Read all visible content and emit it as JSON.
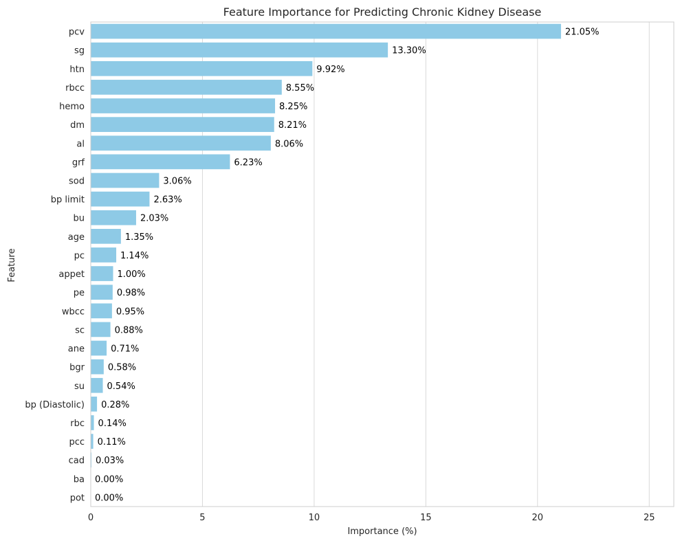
{
  "chart_data": {
    "type": "bar",
    "orientation": "horizontal",
    "title": "Feature Importance for Predicting Chronic Kidney Disease",
    "xlabel": "Importance (%)",
    "ylabel": "Feature",
    "xlim": [
      0,
      26.1
    ],
    "xticks": [
      0,
      5,
      10,
      15,
      20,
      25
    ],
    "grid": "vertical",
    "bar_color": "#8ecae6",
    "categories": [
      "pcv",
      "sg",
      "htn",
      "rbcc",
      "hemo",
      "dm",
      "al",
      "grf",
      "sod",
      "bp limit",
      "bu",
      "age",
      "pc",
      "appet",
      "pe",
      "wbcc",
      "sc",
      "ane",
      "bgr",
      "su",
      "bp (Diastolic)",
      "rbc",
      "pcc",
      "cad",
      "ba",
      "pot"
    ],
    "values": [
      21.05,
      13.3,
      9.92,
      8.55,
      8.25,
      8.21,
      8.06,
      6.23,
      3.06,
      2.63,
      2.03,
      1.35,
      1.14,
      1.0,
      0.98,
      0.95,
      0.88,
      0.71,
      0.58,
      0.54,
      0.28,
      0.14,
      0.11,
      0.03,
      0.0,
      0.0
    ],
    "data_labels": [
      "21.05%",
      "13.30%",
      "9.92%",
      "8.55%",
      "8.25%",
      "8.21%",
      "8.06%",
      "6.23%",
      "3.06%",
      "2.63%",
      "2.03%",
      "1.35%",
      "1.14%",
      "1.00%",
      "0.98%",
      "0.95%",
      "0.88%",
      "0.71%",
      "0.58%",
      "0.54%",
      "0.28%",
      "0.14%",
      "0.11%",
      "0.03%",
      "0.00%",
      "0.00%"
    ]
  }
}
